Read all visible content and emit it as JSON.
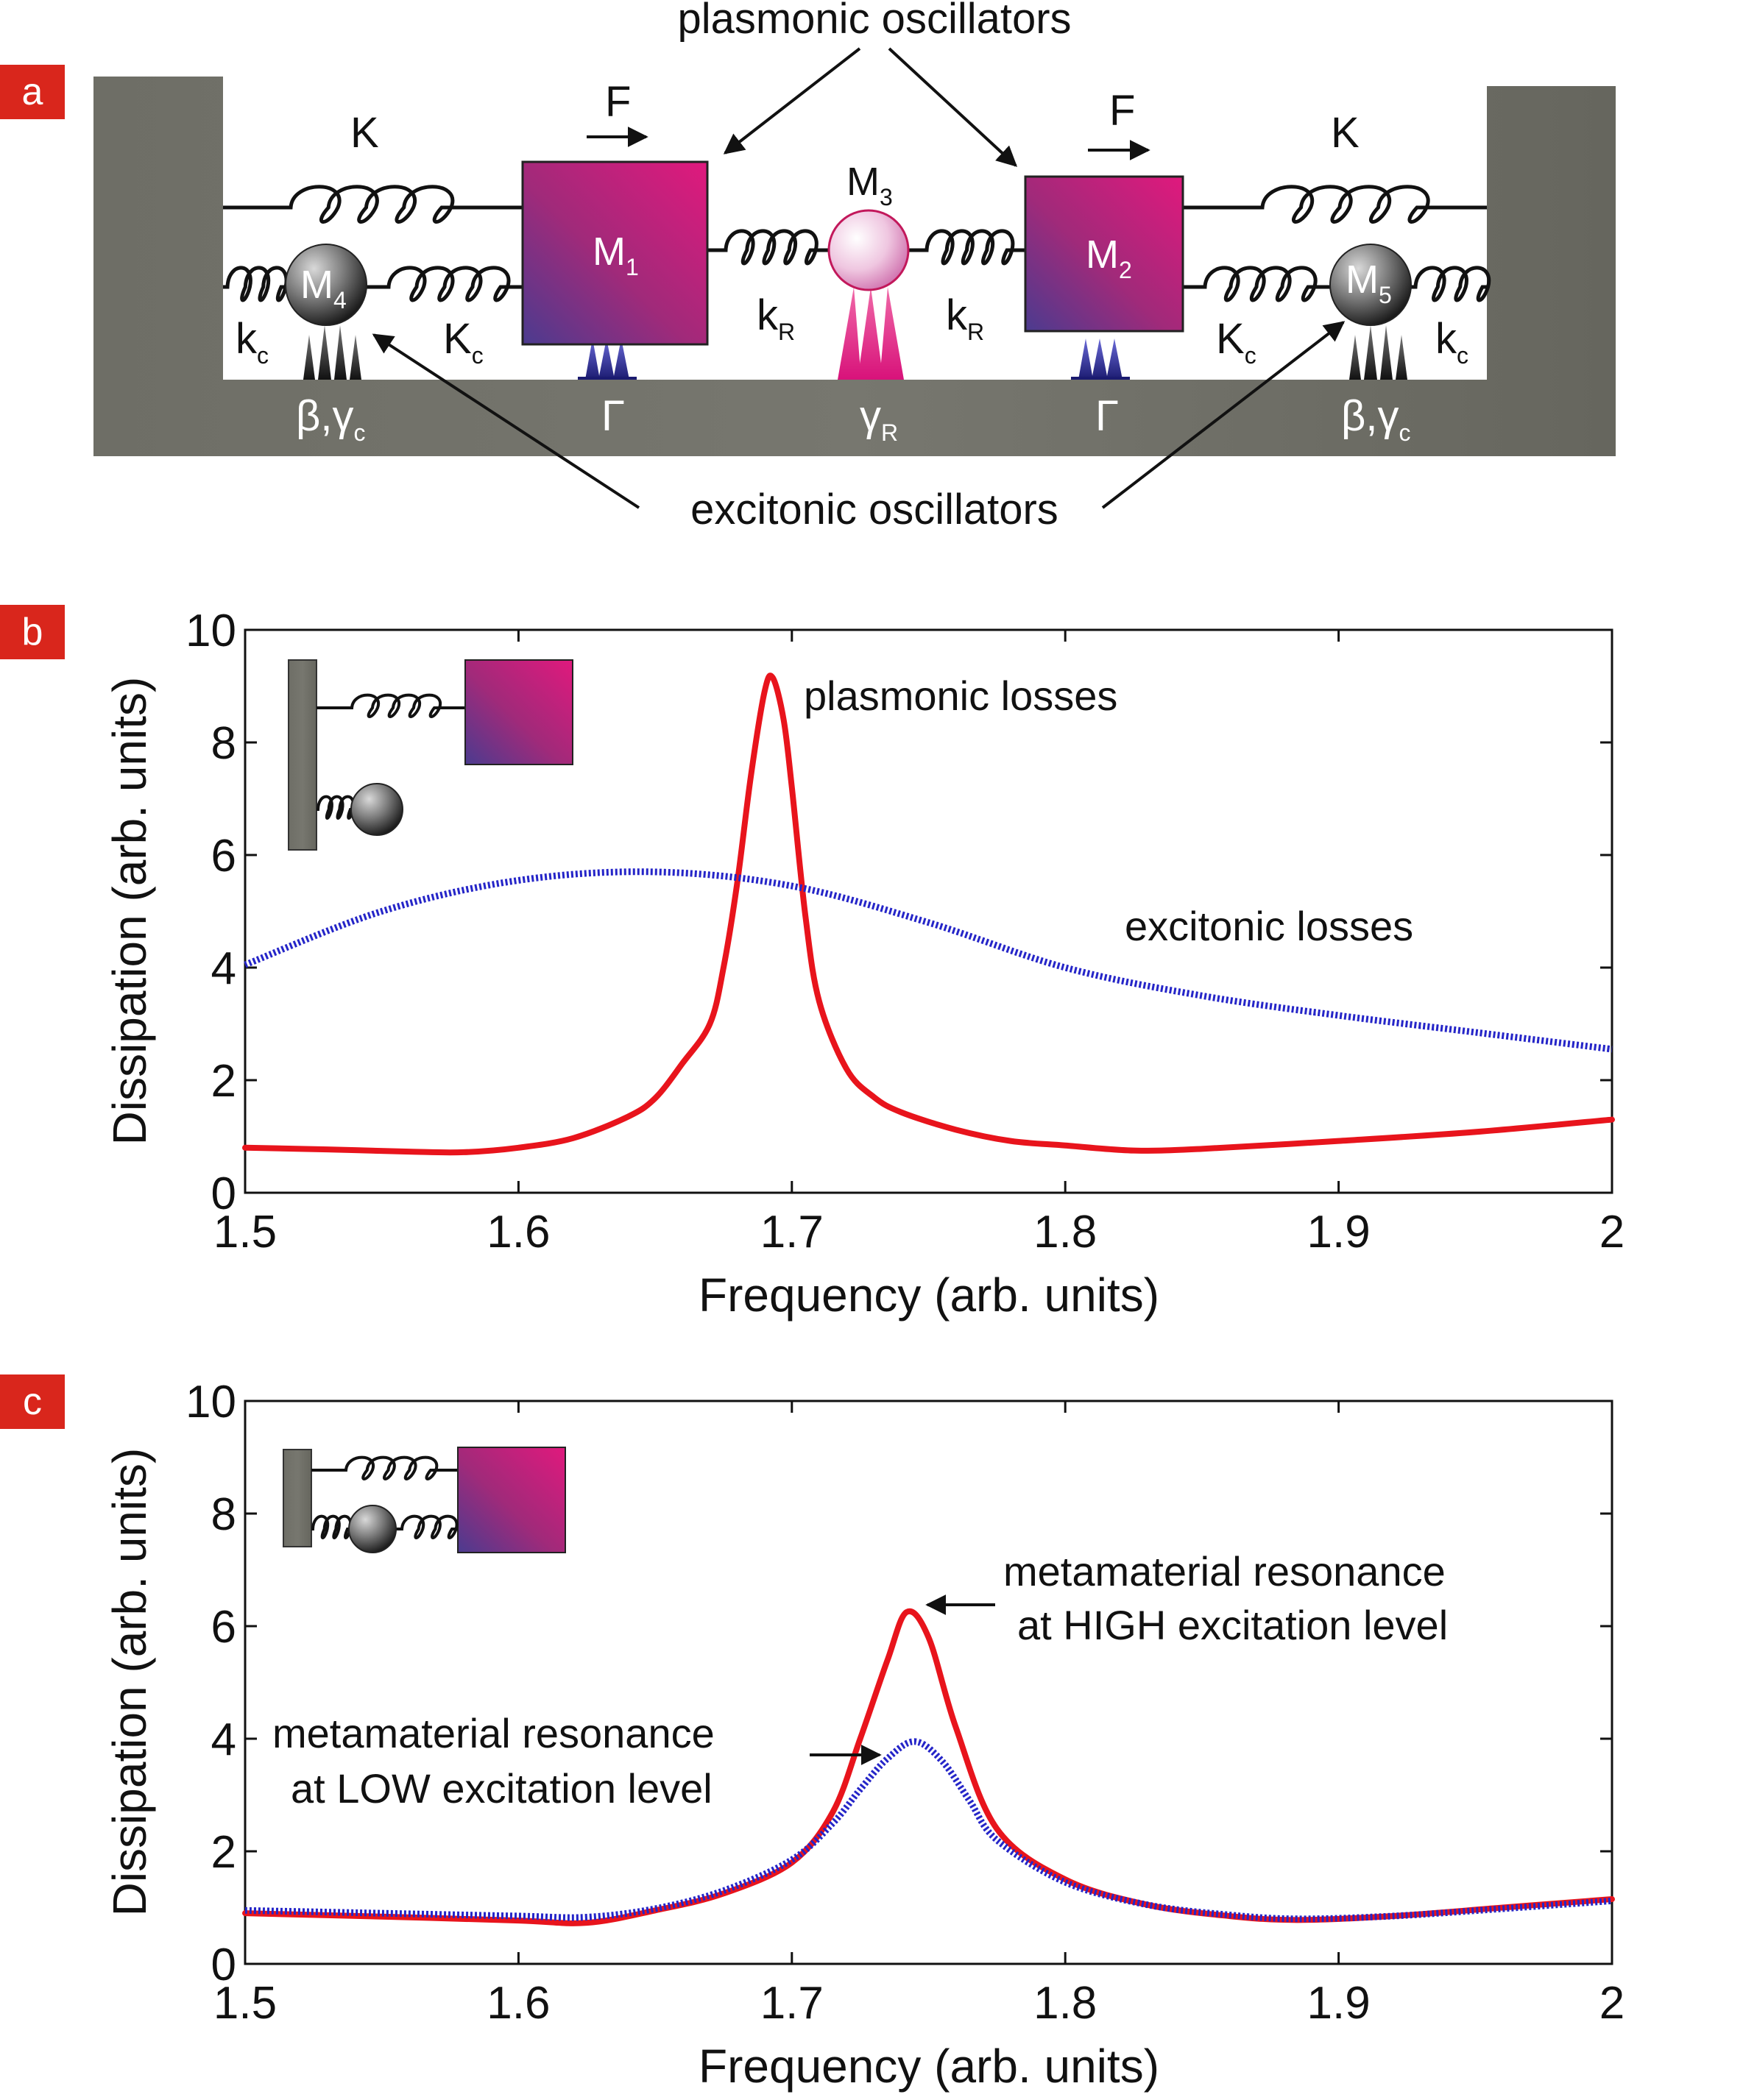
{
  "panels": {
    "a": {
      "tag": "a",
      "top_label": "plasmonic oscillators",
      "bottom_label": "excitonic oscillators",
      "force": "F",
      "spring_outer": "K",
      "coupling_R": "k",
      "coupling_R_sub": "R",
      "coupling_c_small": "k",
      "coupling_c_small_sub": "c",
      "coupling_c_big": "K",
      "coupling_c_big_sub": "c",
      "mass_letter": "M",
      "mass_subs": [
        "1",
        "2",
        "3",
        "4",
        "5"
      ],
      "damp_plasmon": "Γ",
      "damp_R": "γ",
      "damp_R_sub": "R",
      "damp_exc": "β,γ",
      "damp_exc_sub": "c",
      "colors": {
        "wall": "#6b6b62",
        "mass_top": "#e0197d",
        "mass_bottom": "#4b3b8f"
      }
    }
  },
  "chart_data": [
    {
      "panel": "b",
      "type": "line",
      "tag": "b",
      "xlabel": "Frequency (arb. units)",
      "ylabel": "Dissipation (arb. units)",
      "xlim": [
        1.5,
        2.0
      ],
      "ylim": [
        0,
        10
      ],
      "xticks": [
        "1.5",
        "1.6",
        "1.7",
        "1.8",
        "1.9",
        "2"
      ],
      "yticks": [
        "0",
        "2",
        "4",
        "6",
        "8",
        "10"
      ],
      "annotations": [
        "plasmonic losses",
        "excitonic losses"
      ],
      "series": [
        {
          "name": "plasmonic losses",
          "color": "#e8141c",
          "style": "solid",
          "x": [
            1.5,
            1.53,
            1.56,
            1.58,
            1.6,
            1.62,
            1.64,
            1.65,
            1.66,
            1.67,
            1.675,
            1.68,
            1.685,
            1.69,
            1.693,
            1.697,
            1.7,
            1.705,
            1.71,
            1.72,
            1.73,
            1.74,
            1.76,
            1.78,
            1.8,
            1.825,
            1.85,
            1.9,
            1.95,
            2.0
          ],
          "y": [
            0.8,
            0.77,
            0.73,
            0.72,
            0.8,
            0.97,
            1.35,
            1.68,
            2.3,
            3.0,
            4.0,
            5.5,
            7.4,
            8.9,
            9.15,
            8.4,
            7.2,
            4.9,
            3.4,
            2.2,
            1.7,
            1.43,
            1.12,
            0.92,
            0.84,
            0.75,
            0.78,
            0.92,
            1.08,
            1.3
          ]
        },
        {
          "name": "excitonic losses",
          "color": "#2525c8",
          "style": "dotted",
          "x": [
            1.5,
            1.55,
            1.6,
            1.65,
            1.7,
            1.75,
            1.8,
            1.85,
            1.9,
            1.95,
            2.0
          ],
          "y": [
            4.05,
            5.0,
            5.55,
            5.7,
            5.45,
            4.8,
            4.0,
            3.5,
            3.15,
            2.85,
            2.55
          ]
        }
      ]
    },
    {
      "panel": "c",
      "type": "line",
      "tag": "c",
      "xlabel": "Frequency (arb. units)",
      "ylabel": "Dissipation (arb. units)",
      "xlim": [
        1.5,
        2.0
      ],
      "ylim": [
        0,
        10
      ],
      "xticks": [
        "1.5",
        "1.6",
        "1.7",
        "1.8",
        "1.9",
        "2"
      ],
      "yticks": [
        "0",
        "2",
        "4",
        "6",
        "8",
        "10"
      ],
      "annotations": [
        "metamaterial resonance",
        "at HIGH excitation level",
        "metamaterial resonance",
        "at LOW excitation level"
      ],
      "series": [
        {
          "name": "metamaterial resonance at HIGH excitation level",
          "color": "#e8141c",
          "style": "solid",
          "x": [
            1.5,
            1.55,
            1.6,
            1.625,
            1.65,
            1.675,
            1.7,
            1.715,
            1.725,
            1.735,
            1.742,
            1.75,
            1.76,
            1.775,
            1.8,
            1.83,
            1.86,
            1.885,
            1.92,
            1.96,
            2.0
          ],
          "y": [
            0.9,
            0.84,
            0.77,
            0.73,
            0.95,
            1.25,
            1.8,
            2.7,
            4.0,
            5.4,
            6.25,
            5.8,
            4.2,
            2.4,
            1.5,
            1.05,
            0.85,
            0.78,
            0.85,
            1.0,
            1.15
          ]
        },
        {
          "name": "metamaterial resonance at LOW excitation level",
          "color": "#2525c8",
          "style": "dotted",
          "x": [
            1.5,
            1.55,
            1.6,
            1.625,
            1.65,
            1.675,
            1.7,
            1.715,
            1.725,
            1.735,
            1.745,
            1.755,
            1.765,
            1.775,
            1.8,
            1.83,
            1.86,
            1.885,
            1.92,
            1.96,
            2.0
          ],
          "y": [
            0.95,
            0.9,
            0.85,
            0.83,
            0.98,
            1.3,
            1.85,
            2.5,
            3.1,
            3.65,
            3.95,
            3.6,
            2.9,
            2.2,
            1.45,
            1.05,
            0.87,
            0.8,
            0.85,
            0.98,
            1.12
          ]
        }
      ]
    }
  ]
}
